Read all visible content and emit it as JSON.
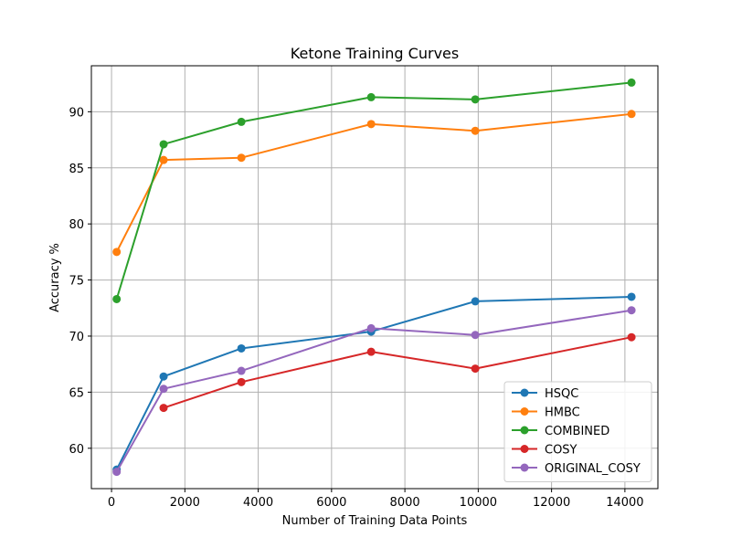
{
  "chart_data": {
    "type": "line",
    "title": "Ketone Training Curves",
    "xlabel": "Number of Training Data Points",
    "ylabel": "Accuracy %",
    "xlim": [
      -550,
      14900
    ],
    "ylim": [
      56.4,
      94.1
    ],
    "xticks": [
      0,
      2000,
      4000,
      6000,
      8000,
      10000,
      12000,
      14000
    ],
    "yticks": [
      60,
      65,
      70,
      75,
      80,
      85,
      90
    ],
    "grid": true,
    "legend_position": "lower-right",
    "x": [
      140,
      1420,
      3540,
      7080,
      9920,
      14180
    ],
    "series": [
      {
        "name": "HSQC",
        "color": "#1f77b4",
        "values": [
          58.1,
          66.4,
          68.9,
          70.4,
          73.1,
          73.5
        ]
      },
      {
        "name": "HMBC",
        "color": "#ff7f0e",
        "values": [
          77.5,
          85.7,
          85.9,
          88.9,
          88.3,
          89.8
        ]
      },
      {
        "name": "COMBINED",
        "color": "#2ca02c",
        "values": [
          73.3,
          87.1,
          89.1,
          91.3,
          91.1,
          92.6
        ]
      },
      {
        "name": "COSY",
        "color": "#d62728",
        "values": [
          null,
          63.6,
          65.9,
          68.6,
          67.1,
          69.9
        ]
      },
      {
        "name": "ORIGINAL_COSY",
        "color": "#9467bd",
        "values": [
          57.9,
          65.3,
          66.9,
          70.7,
          70.1,
          72.3
        ]
      }
    ]
  }
}
